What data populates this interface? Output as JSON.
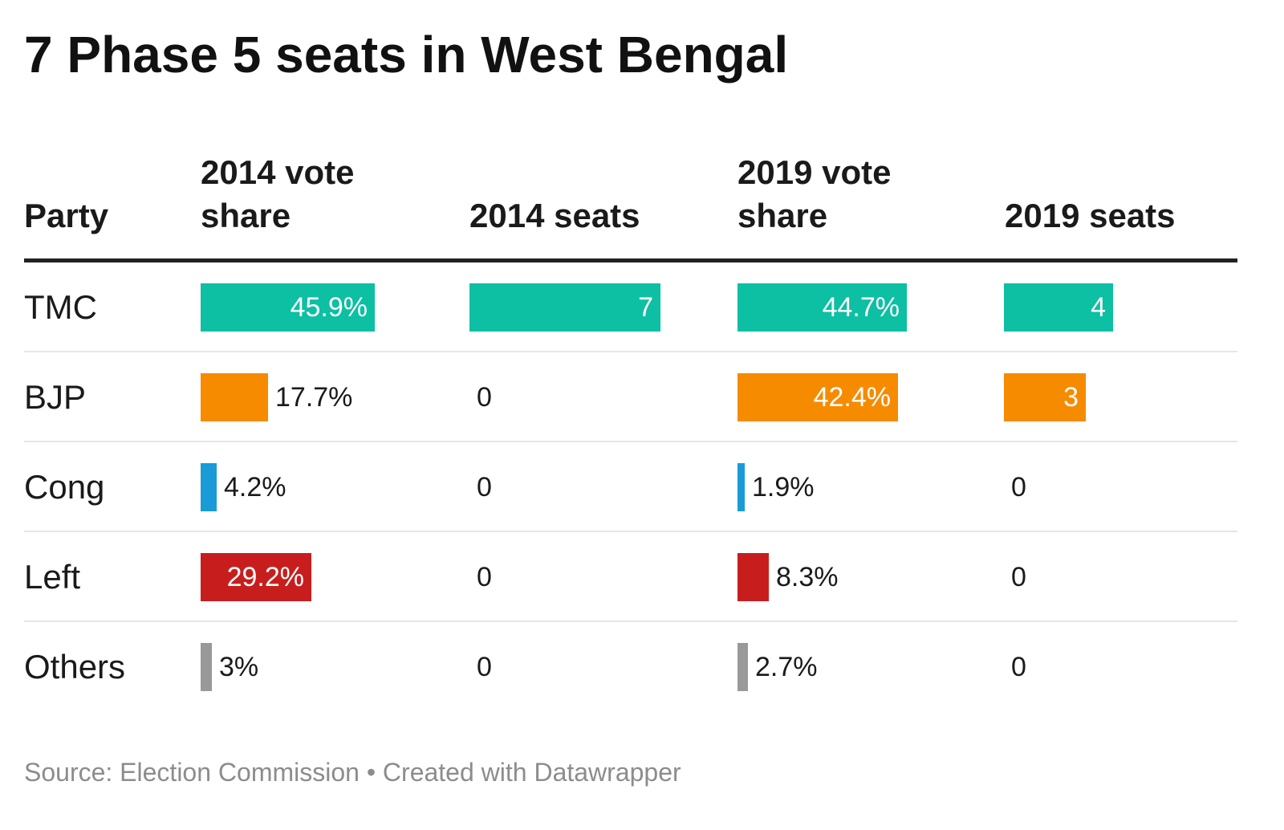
{
  "title": "7 Phase 5 seats in West Bengal",
  "headers": {
    "party": "Party",
    "vote_2014_line1": "2014 vote",
    "vote_2014_line2": "share",
    "seats_2014": "2014 seats",
    "vote_2019_line1": "2019 vote",
    "vote_2019_line2": "share",
    "seats_2019": "2019 seats"
  },
  "source": "Source: Election Commission • Created with Datawrapper",
  "chart_data": {
    "type": "table",
    "columns": [
      "Party",
      "2014 vote share",
      "2014 seats",
      "2019 vote share",
      "2019 seats"
    ],
    "rows": [
      {
        "party": "TMC",
        "color": "#0dbfa3",
        "vote_2014": 45.9,
        "vote_2014_label": "45.9%",
        "seats_2014": 7,
        "seats_2014_label": "7",
        "vote_2019": 44.7,
        "vote_2019_label": "44.7%",
        "seats_2019": 4,
        "seats_2019_label": "4"
      },
      {
        "party": "BJP",
        "color": "#f68b00",
        "vote_2014": 17.7,
        "vote_2014_label": "17.7%",
        "seats_2014": 0,
        "seats_2014_label": "0",
        "vote_2019": 42.4,
        "vote_2019_label": "42.4%",
        "seats_2019": 3,
        "seats_2019_label": "3"
      },
      {
        "party": "Cong",
        "color": "#1a9bd7",
        "vote_2014": 4.2,
        "vote_2014_label": "4.2%",
        "seats_2014": 0,
        "seats_2014_label": "0",
        "vote_2019": 1.9,
        "vote_2019_label": "1.9%",
        "seats_2019": 0,
        "seats_2019_label": "0"
      },
      {
        "party": "Left",
        "color": "#c71e1d",
        "vote_2014": 29.2,
        "vote_2014_label": "29.2%",
        "seats_2014": 0,
        "seats_2014_label": "0",
        "vote_2019": 8.3,
        "vote_2019_label": "8.3%",
        "seats_2019": 0,
        "seats_2019_label": "0"
      },
      {
        "party": "Others",
        "color": "#999999",
        "vote_2014": 3,
        "vote_2014_label": "3%",
        "seats_2014": 0,
        "seats_2014_label": "0",
        "vote_2019": 2.7,
        "vote_2019_label": "2.7%",
        "seats_2019": 0,
        "seats_2019_label": "0"
      }
    ]
  }
}
